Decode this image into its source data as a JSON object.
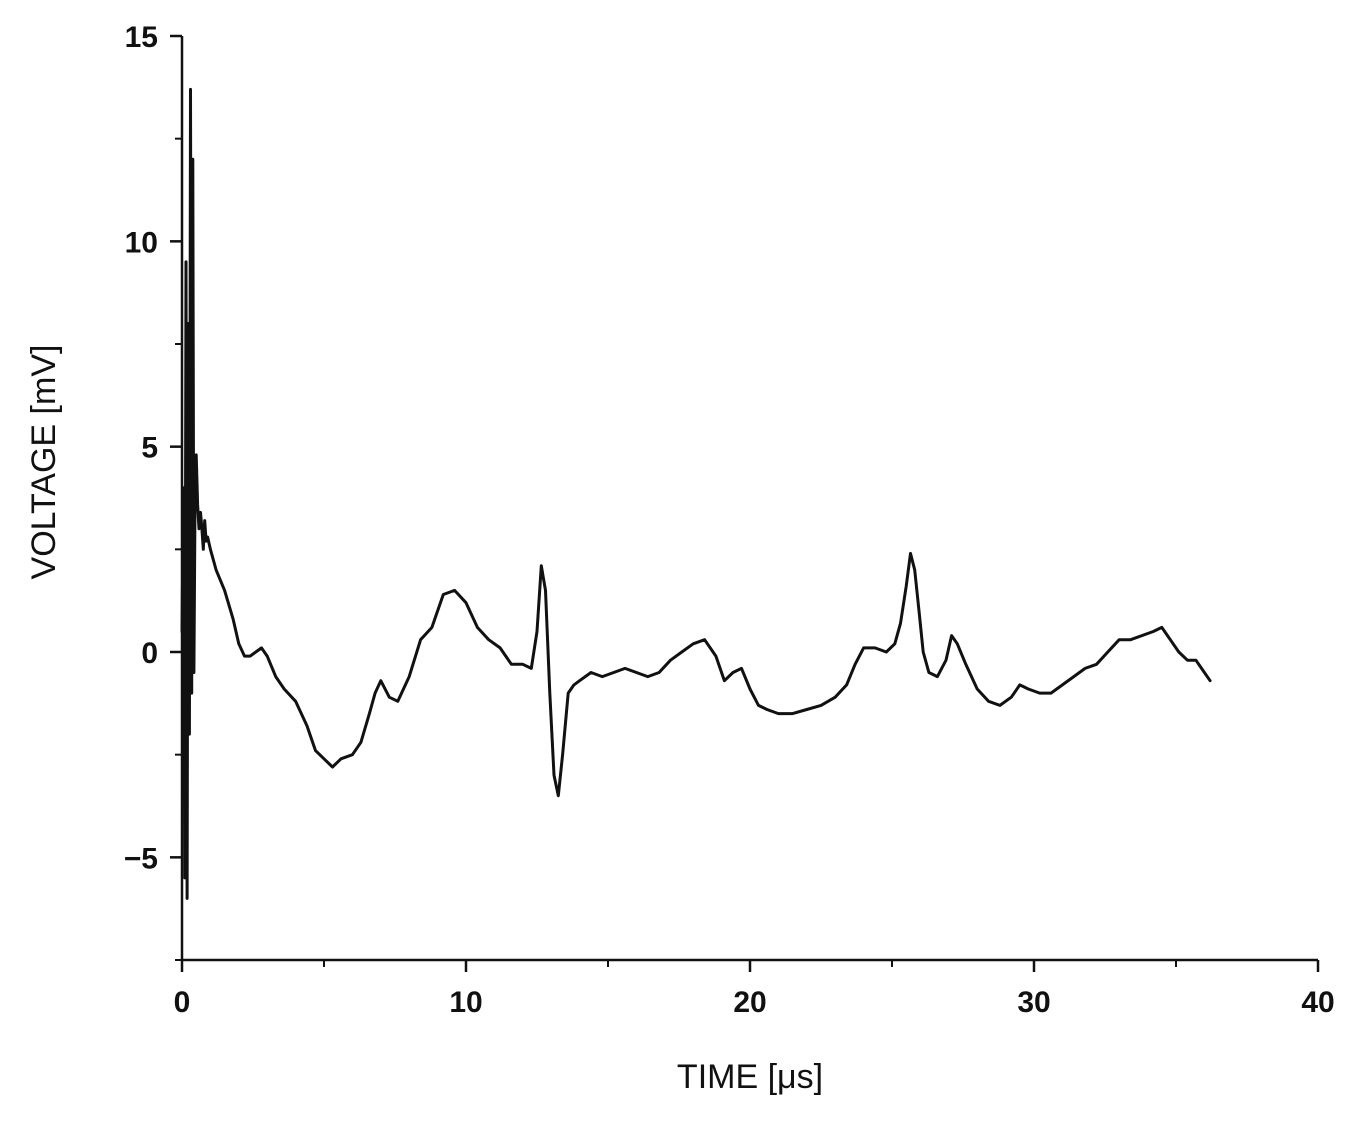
{
  "chart_data": {
    "type": "line",
    "title": "",
    "xlabel": "TIME [μs]",
    "ylabel": "VOLTAGE [mV]",
    "xlim": [
      0,
      40
    ],
    "ylim": [
      -7.5,
      15
    ],
    "x_ticks": [
      0,
      10,
      20,
      30,
      40
    ],
    "x_tick_labels": [
      "0",
      "10",
      "20",
      "30",
      "40"
    ],
    "y_ticks": [
      -5,
      0,
      5,
      10,
      15
    ],
    "y_tick_labels": [
      "−5",
      "0",
      "5",
      "10",
      "15"
    ],
    "x_minor_step": 5,
    "y_minor_step": 2.5,
    "grid": false,
    "legend": "none",
    "line_color": "#111111",
    "series": [
      {
        "x": [
          0,
          0.05,
          0.1,
          0.14,
          0.18,
          0.22,
          0.26,
          0.3,
          0.34,
          0.38,
          0.42,
          0.46,
          0.5,
          0.55,
          0.6,
          0.65,
          0.7,
          0.75,
          0.8,
          0.85,
          0.9,
          1.0,
          1.2,
          1.5,
          1.8,
          2.0,
          2.2,
          2.4,
          2.6,
          2.8,
          3.0,
          3.3,
          3.6,
          4.0,
          4.4,
          4.7,
          5.0,
          5.3,
          5.6,
          6.0,
          6.3,
          6.6,
          6.8,
          7.0,
          7.3,
          7.6,
          8.0,
          8.4,
          8.8,
          9.2,
          9.6,
          10.0,
          10.4,
          10.8,
          11.2,
          11.6,
          12.0,
          12.3,
          12.5,
          12.65,
          12.8,
          12.95,
          13.1,
          13.25,
          13.4,
          13.6,
          13.8,
          14.0,
          14.4,
          14.8,
          15.2,
          15.6,
          16.0,
          16.4,
          16.8,
          17.2,
          17.6,
          18.0,
          18.4,
          18.8,
          19.1,
          19.4,
          19.7,
          20.0,
          20.3,
          20.6,
          21.0,
          21.5,
          22.0,
          22.5,
          23.0,
          23.4,
          23.7,
          24.0,
          24.4,
          24.8,
          25.1,
          25.3,
          25.5,
          25.65,
          25.8,
          25.95,
          26.1,
          26.3,
          26.6,
          26.9,
          27.1,
          27.3,
          27.6,
          28.0,
          28.4,
          28.8,
          29.2,
          29.5,
          29.8,
          30.2,
          30.6,
          31.0,
          31.4,
          31.8,
          32.2,
          32.6,
          33.0,
          33.4,
          33.8,
          34.2,
          34.5,
          34.8,
          35.1,
          35.4,
          35.7,
          36.0,
          36.2
        ],
        "y": [
          0.5,
          4.0,
          -5.5,
          9.5,
          -6.0,
          8.0,
          -2.0,
          13.7,
          -1.0,
          12.0,
          -0.5,
          4.0,
          4.8,
          3.6,
          3.0,
          3.4,
          3.0,
          2.5,
          3.2,
          2.7,
          2.8,
          2.5,
          2.0,
          1.5,
          0.8,
          0.2,
          -0.1,
          -0.1,
          0.0,
          0.1,
          -0.1,
          -0.6,
          -0.9,
          -1.2,
          -1.8,
          -2.4,
          -2.6,
          -2.8,
          -2.6,
          -2.5,
          -2.2,
          -1.5,
          -1.0,
          -0.7,
          -1.1,
          -1.2,
          -0.6,
          0.3,
          0.6,
          1.4,
          1.5,
          1.2,
          0.6,
          0.3,
          0.1,
          -0.3,
          -0.3,
          -0.4,
          0.5,
          2.1,
          1.5,
          -1.0,
          -3.0,
          -3.5,
          -2.5,
          -1.0,
          -0.8,
          -0.7,
          -0.5,
          -0.6,
          -0.5,
          -0.4,
          -0.5,
          -0.6,
          -0.5,
          -0.2,
          0.0,
          0.2,
          0.3,
          -0.1,
          -0.7,
          -0.5,
          -0.4,
          -0.9,
          -1.3,
          -1.4,
          -1.5,
          -1.5,
          -1.4,
          -1.3,
          -1.1,
          -0.8,
          -0.3,
          0.1,
          0.1,
          0.0,
          0.2,
          0.7,
          1.6,
          2.4,
          2.0,
          1.0,
          0.0,
          -0.5,
          -0.6,
          -0.2,
          0.4,
          0.2,
          -0.3,
          -0.9,
          -1.2,
          -1.3,
          -1.1,
          -0.8,
          -0.9,
          -1.0,
          -1.0,
          -0.8,
          -0.6,
          -0.4,
          -0.3,
          0.0,
          0.3,
          0.3,
          0.4,
          0.5,
          0.6,
          0.3,
          0.0,
          -0.2,
          -0.2,
          -0.5,
          -0.7
        ]
      }
    ]
  }
}
